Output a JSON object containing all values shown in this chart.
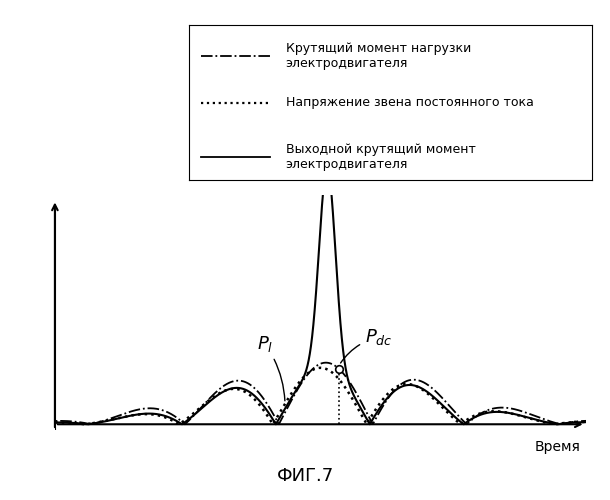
{
  "title": "ФИГ.7",
  "xlabel": "Время",
  "legend_entries": [
    "Крутящий момент нагрузки\nэлектродвигателя",
    "Напряжение звена постоянного тока",
    "Выходной крутящий момент\nэлектродвигателя"
  ],
  "background_color": "#ffffff",
  "line_color": "#000000",
  "fig_width": 6.1,
  "fig_height": 5.0,
  "dpi": 100
}
